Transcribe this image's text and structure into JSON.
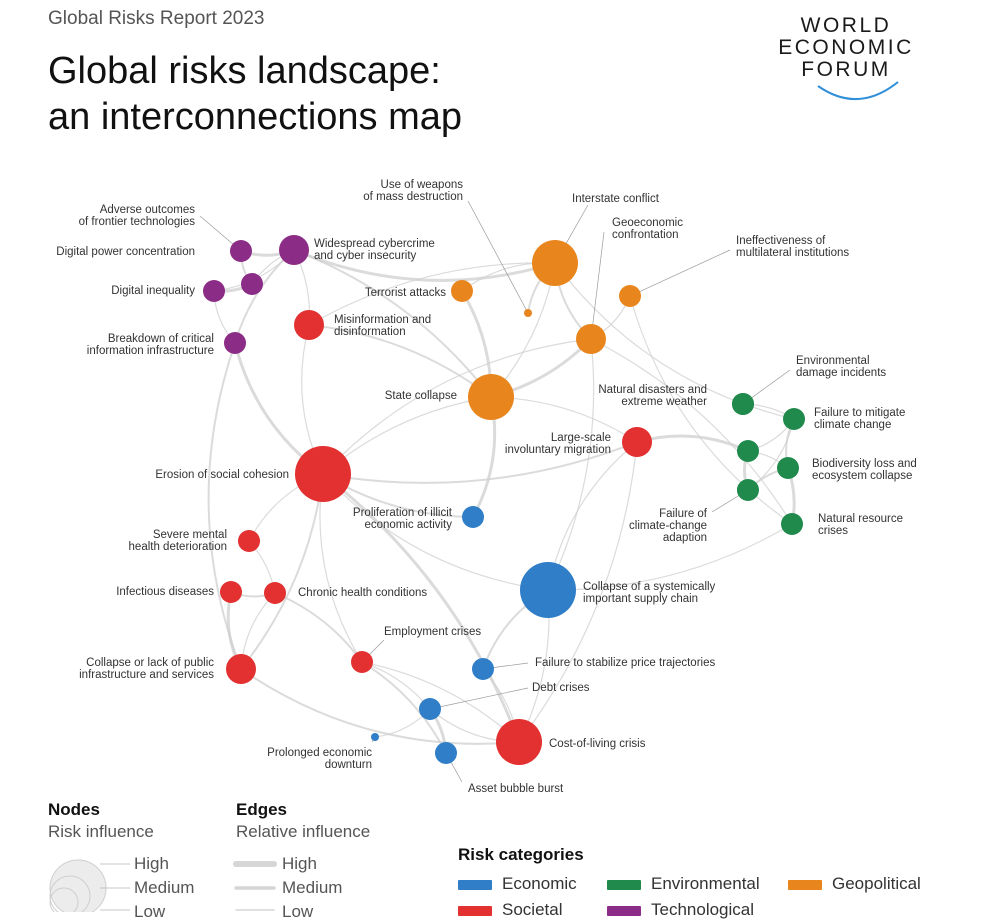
{
  "header": {
    "report": "Global Risks Report 2023",
    "title_line1": "Global risks landscape:",
    "title_line2": "an interconnections map"
  },
  "logo": {
    "line1": "WORLD",
    "line2": "ECONOMIC",
    "line3": "FORUM"
  },
  "colors": {
    "economic": "#2f7ec7",
    "environmental": "#1f8a4c",
    "geopolitical": "#e8861d",
    "societal": "#e33030",
    "technological": "#8b2c86",
    "edge": "#cfcfcf"
  },
  "nodes": [
    {
      "id": "adverse",
      "cat": "technological",
      "size": "small",
      "label": [
        "Adverse outcomes",
        "of frontier technologies"
      ]
    },
    {
      "id": "power",
      "cat": "technological",
      "size": "small",
      "label": [
        "Digital power concentration"
      ]
    },
    {
      "id": "cybercrime",
      "cat": "technological",
      "size": "medium",
      "label": [
        "Widespread cybercrime",
        "and cyber insecurity"
      ]
    },
    {
      "id": "inequality",
      "cat": "technological",
      "size": "small",
      "label": [
        "Digital inequality"
      ]
    },
    {
      "id": "breakdown",
      "cat": "technological",
      "size": "small",
      "label": [
        "Breakdown of critical",
        "information infrastructure"
      ]
    },
    {
      "id": "misinfo",
      "cat": "societal",
      "size": "medium",
      "label": [
        "Misinformation and",
        "disinformation"
      ]
    },
    {
      "id": "wmd",
      "cat": "geopolitical",
      "size": "tiny",
      "label": [
        "Use of weapons",
        "of mass destruction"
      ]
    },
    {
      "id": "interstate",
      "cat": "geopolitical",
      "size": "large",
      "label": [
        "Interstate conflict"
      ]
    },
    {
      "id": "geoeconomic",
      "cat": "geopolitical",
      "size": "medium",
      "label": [
        "Geoeconomic",
        "confrontation"
      ]
    },
    {
      "id": "multilateral",
      "cat": "geopolitical",
      "size": "small",
      "label": [
        "Ineffectiveness of",
        "multilateral institutions"
      ]
    },
    {
      "id": "terrorist",
      "cat": "geopolitical",
      "size": "small",
      "label": [
        "Terrorist attacks"
      ]
    },
    {
      "id": "statecollapse",
      "cat": "geopolitical",
      "size": "large",
      "label": [
        "State collapse"
      ]
    },
    {
      "id": "natural",
      "cat": "environmental",
      "size": "small",
      "label": [
        "Natural disasters and",
        "extreme weather"
      ]
    },
    {
      "id": "migration",
      "cat": "societal",
      "size": "medium",
      "label": [
        "Large-scale",
        "involuntary migration"
      ]
    },
    {
      "id": "envdamage",
      "cat": "environmental",
      "size": "small",
      "label": [
        "Environmental",
        "damage incidents"
      ]
    },
    {
      "id": "mitigate",
      "cat": "environmental",
      "size": "small",
      "label": [
        "Failure to mitigate",
        "climate change"
      ]
    },
    {
      "id": "biodiversity",
      "cat": "environmental",
      "size": "small",
      "label": [
        "Biodiversity loss and",
        "ecosystem collapse"
      ]
    },
    {
      "id": "adaption",
      "cat": "environmental",
      "size": "small",
      "label": [
        "Failure of",
        "climate-change",
        "adaption"
      ]
    },
    {
      "id": "resource",
      "cat": "environmental",
      "size": "small",
      "label": [
        "Natural resource",
        "crises"
      ]
    },
    {
      "id": "cohesion",
      "cat": "societal",
      "size": "xlarge",
      "label": [
        "Erosion of social cohesion"
      ]
    },
    {
      "id": "illicit",
      "cat": "economic",
      "size": "small",
      "label": [
        "Proliferation of illicit",
        "economic activity"
      ]
    },
    {
      "id": "mental",
      "cat": "societal",
      "size": "small",
      "label": [
        "Severe mental",
        "health deterioration"
      ]
    },
    {
      "id": "infectious",
      "cat": "societal",
      "size": "small",
      "label": [
        "Infectious diseases"
      ]
    },
    {
      "id": "chronic",
      "cat": "societal",
      "size": "small",
      "label": [
        "Chronic health conditions"
      ]
    },
    {
      "id": "supply",
      "cat": "economic",
      "size": "xlarge",
      "label": [
        "Collapse of a systemically",
        "important supply chain"
      ]
    },
    {
      "id": "employment",
      "cat": "societal",
      "size": "small",
      "label": [
        "Employment crises"
      ]
    },
    {
      "id": "publicinfra",
      "cat": "societal",
      "size": "medium",
      "label": [
        "Collapse or lack of public",
        "infrastructure and services"
      ]
    },
    {
      "id": "price",
      "cat": "economic",
      "size": "small",
      "label": [
        "Failure to stabilize price trajectories"
      ]
    },
    {
      "id": "debt",
      "cat": "economic",
      "size": "small",
      "label": [
        "Debt crises"
      ]
    },
    {
      "id": "costliving",
      "cat": "societal",
      "size": "large",
      "label": [
        "Cost-of-living crisis"
      ]
    },
    {
      "id": "downturn",
      "cat": "economic",
      "size": "tiny",
      "label": [
        "Prolonged economic",
        "downturn"
      ]
    },
    {
      "id": "bubble",
      "cat": "economic",
      "size": "small",
      "label": [
        "Asset bubble burst"
      ]
    }
  ],
  "edges": [
    [
      "adverse",
      "cybercrime"
    ],
    [
      "power",
      "cybercrime"
    ],
    [
      "inequality",
      "cybercrime"
    ],
    [
      "breakdown",
      "cybercrime"
    ],
    [
      "inequality",
      "breakdown"
    ],
    [
      "power",
      "inequality"
    ],
    [
      "adverse",
      "power"
    ],
    [
      "cybercrime",
      "misinfo"
    ],
    [
      "misinfo",
      "cohesion"
    ],
    [
      "misinfo",
      "statecollapse"
    ],
    [
      "cybercrime",
      "interstate"
    ],
    [
      "cohesion",
      "statecollapse"
    ],
    [
      "interstate",
      "geoeconomic"
    ],
    [
      "interstate",
      "statecollapse"
    ],
    [
      "interstate",
      "terrorist"
    ],
    [
      "geoeconomic",
      "statecollapse"
    ],
    [
      "geoeconomic",
      "multilateral"
    ],
    [
      "geoeconomic",
      "supply"
    ],
    [
      "interstate",
      "wmd"
    ],
    [
      "statecollapse",
      "migration"
    ],
    [
      "natural",
      "migration"
    ],
    [
      "migration",
      "cohesion"
    ],
    [
      "migration",
      "supply"
    ],
    [
      "envdamage",
      "mitigate"
    ],
    [
      "mitigate",
      "biodiversity"
    ],
    [
      "biodiversity",
      "resource"
    ],
    [
      "adaption",
      "mitigate"
    ],
    [
      "adaption",
      "biodiversity"
    ],
    [
      "natural",
      "mitigate"
    ],
    [
      "natural",
      "biodiversity"
    ],
    [
      "natural",
      "adaption"
    ],
    [
      "resource",
      "supply"
    ],
    [
      "cohesion",
      "mental"
    ],
    [
      "cohesion",
      "publicinfra"
    ],
    [
      "cohesion",
      "employment"
    ],
    [
      "cohesion",
      "costliving"
    ],
    [
      "infectious",
      "chronic"
    ],
    [
      "mental",
      "chronic"
    ],
    [
      "chronic",
      "publicinfra"
    ],
    [
      "chronic",
      "employment"
    ],
    [
      "infectious",
      "publicinfra"
    ],
    [
      "supply",
      "costliving"
    ],
    [
      "supply",
      "price"
    ],
    [
      "employment",
      "costliving"
    ],
    [
      "debt",
      "costliving"
    ],
    [
      "debt",
      "bubble"
    ],
    [
      "downturn",
      "debt"
    ],
    [
      "price",
      "costliving"
    ],
    [
      "publicinfra",
      "costliving"
    ],
    [
      "employment",
      "debt"
    ],
    [
      "illicit",
      "statecollapse"
    ],
    [
      "illicit",
      "cohesion"
    ],
    [
      "geoeconomic",
      "cohesion"
    ],
    [
      "misinfo",
      "interstate"
    ],
    [
      "breakdown",
      "publicinfra"
    ],
    [
      "terrorist",
      "statecollapse"
    ],
    [
      "multilateral",
      "resource"
    ],
    [
      "cybercrime",
      "statecollapse"
    ],
    [
      "cohesion",
      "supply"
    ],
    [
      "migration",
      "costliving"
    ],
    [
      "breakdown",
      "cohesion"
    ],
    [
      "geoeconomic",
      "resource"
    ],
    [
      "interstate",
      "mitigate"
    ],
    [
      "employment",
      "bubble"
    ]
  ],
  "legend": {
    "nodes_title": "Nodes",
    "nodes_sub": "Risk influence",
    "node_high": "High",
    "node_medium": "Medium",
    "node_low": "Low",
    "edges_title": "Edges",
    "edges_sub": "Relative influence",
    "edge_high": "High",
    "edge_medium": "Medium",
    "edge_low": "Low",
    "categories_title": "Risk categories",
    "categories": [
      {
        "key": "economic",
        "label": "Economic"
      },
      {
        "key": "environmental",
        "label": "Environmental"
      },
      {
        "key": "geopolitical",
        "label": "Geopolitical"
      },
      {
        "key": "societal",
        "label": "Societal"
      },
      {
        "key": "technological",
        "label": "Technological"
      }
    ]
  }
}
